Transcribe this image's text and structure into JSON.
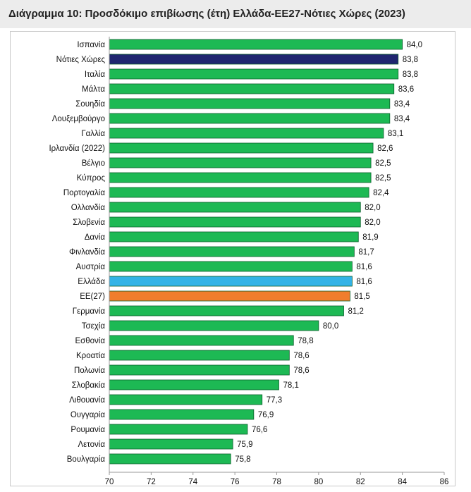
{
  "chart_data": {
    "type": "bar",
    "orientation": "horizontal",
    "title": "Διάγραμμα 10: Προσδόκιμο επιβίωσης (έτη) Ελλάδα-ΕΕ27-Νότιες Χώρες (2023)",
    "xlabel": "",
    "ylabel": "",
    "xlim": [
      70,
      86
    ],
    "xticks": [
      70,
      72,
      74,
      76,
      78,
      80,
      82,
      84,
      86
    ],
    "grid": false,
    "legend": "none",
    "categories": [
      "Ισπανία",
      "Νότιες Χώρες",
      "Ιταλία",
      "Μάλτα",
      "Σουηδία",
      "Λουξεμβούργο",
      "Γαλλία",
      "Ιρλανδία (2022)",
      "Βέλγιο",
      "Κύπρος",
      "Πορτογαλία",
      "Ολλανδία",
      "Σλοβενία",
      "Δανία",
      "Φινλανδία",
      "Αυστρία",
      "Ελλάδα",
      "ΕΕ(27)",
      "Γερμανία",
      "Τσεχία",
      "Εσθονία",
      "Κροατία",
      "Πολωνία",
      "Σλοβακία",
      "Λιθουανία",
      "Ουγγαρία",
      "Ρουμανία",
      "Λετονία",
      "Βουλγαρία"
    ],
    "values": [
      84.0,
      83.8,
      83.8,
      83.6,
      83.4,
      83.4,
      83.1,
      82.6,
      82.5,
      82.5,
      82.4,
      82.0,
      82.0,
      81.9,
      81.7,
      81.6,
      81.6,
      81.5,
      81.2,
      80.0,
      78.8,
      78.6,
      78.6,
      78.1,
      77.3,
      76.9,
      76.6,
      75.9,
      75.8
    ],
    "value_labels": [
      "84,0",
      "83,8",
      "83,8",
      "83,6",
      "83,4",
      "83,4",
      "83,1",
      "82,6",
      "82,5",
      "82,5",
      "82,4",
      "82,0",
      "82,0",
      "81,9",
      "81,7",
      "81,6",
      "81,6",
      "81,5",
      "81,2",
      "80,0",
      "78,8",
      "78,6",
      "78,6",
      "78,1",
      "77,3",
      "76,9",
      "76,6",
      "75,9",
      "75,8"
    ],
    "colors": {
      "default": "#1db954",
      "Νότιες Χώρες": "#1f2670",
      "Ελλάδα": "#33b3e6",
      "ΕΕ(27)": "#f07d2c"
    },
    "bar_edge": "#0a5c2a"
  }
}
